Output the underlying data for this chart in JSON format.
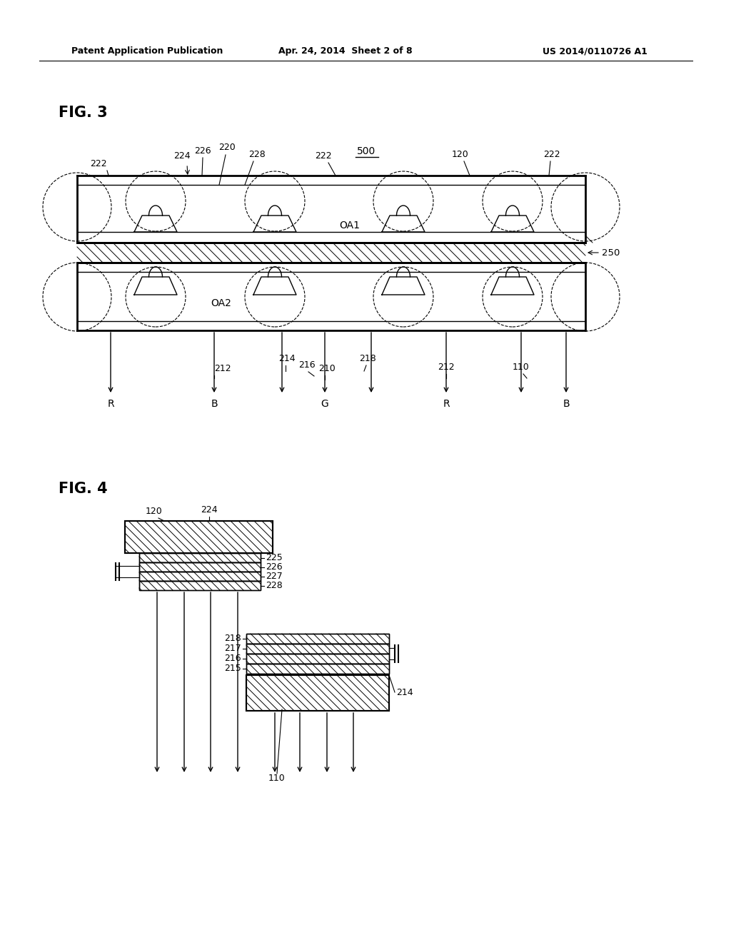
{
  "bg_color": "#ffffff",
  "header_text": "Patent Application Publication",
  "header_date": "Apr. 24, 2014  Sheet 2 of 8",
  "header_patent": "US 2014/0110726 A1",
  "fig3_label": "FIG. 3",
  "fig4_label": "FIG. 4",
  "label_500": "500",
  "label_250": "250",
  "label_OA1": "OA1",
  "label_OA2": "OA2"
}
